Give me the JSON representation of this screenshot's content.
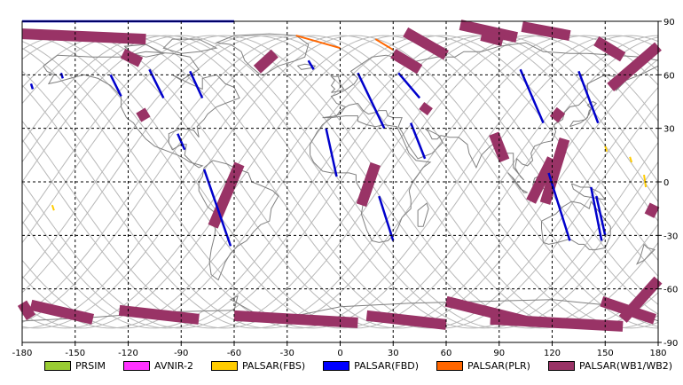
{
  "map": {
    "projection": "equirectangular",
    "lon_range": [
      -180,
      180
    ],
    "lat_range": [
      -90,
      90
    ],
    "grid_step": 30,
    "axis_ticks": {
      "lon": [
        -180,
        -150,
        -120,
        -90,
        -60,
        -30,
        0,
        30,
        60,
        90,
        120,
        150,
        180
      ],
      "lat": [
        90,
        60,
        30,
        0,
        -30,
        -60,
        -90
      ]
    }
  },
  "legend": [
    {
      "label": "PRSIM",
      "color": "#99cc33"
    },
    {
      "label": "AVNIR-2",
      "color": "#ff33ff"
    },
    {
      "label": "PALSAR(FBS)",
      "color": "#ffcc00"
    },
    {
      "label": "PALSAR(FBD)",
      "color": "#0000ff"
    },
    {
      "label": "PALSAR(PLR)",
      "color": "#ff6600"
    },
    {
      "label": "PALSAR(WB1/WB2)",
      "color": "#993366"
    }
  ],
  "colors": {
    "coast": "#808080",
    "orbit": "#b8b8b8",
    "grid": "#000000",
    "fbd": "#0000cc",
    "wb": "#993366",
    "plr": "#ff6600",
    "fbs": "#ffcc00"
  },
  "chart_data": {
    "type": "map",
    "wb_segments": [
      {
        "lon": [
          -180,
          -110
        ],
        "lat": [
          83,
          80
        ]
      },
      {
        "lon": [
          -123,
          -113
        ],
        "lat": [
          72,
          67
        ]
      },
      {
        "lon": [
          -113,
          -110
        ],
        "lat": [
          40,
          35
        ]
      },
      {
        "lon": [
          -57,
          -72
        ],
        "lat": [
          10,
          -25
        ]
      },
      {
        "lon": [
          -37,
          -47
        ],
        "lat": [
          72,
          63
        ]
      },
      {
        "lon": [
          30,
          45
        ],
        "lat": [
          72,
          63
        ]
      },
      {
        "lon": [
          37,
          60
        ],
        "lat": [
          84,
          71
        ]
      },
      {
        "lon": [
          68,
          100
        ],
        "lat": [
          88,
          81
        ]
      },
      {
        "lon": [
          80,
          92
        ],
        "lat": [
          82,
          79
        ]
      },
      {
        "lon": [
          103,
          130
        ],
        "lat": [
          87,
          82
        ]
      },
      {
        "lon": [
          145,
          160
        ],
        "lat": [
          79,
          70
        ]
      },
      {
        "lon": [
          180,
          153
        ],
        "lat": [
          76,
          53
        ]
      },
      {
        "lon": [
          50,
          47
        ],
        "lat": [
          43,
          39
        ]
      },
      {
        "lon": [
          125,
          121
        ],
        "lat": [
          40,
          35
        ]
      },
      {
        "lon": [
          87,
          93
        ],
        "lat": [
          27,
          12
        ]
      },
      {
        "lon": [
          127,
          116
        ],
        "lat": [
          24,
          -12
        ]
      },
      {
        "lon": [
          120,
          108
        ],
        "lat": [
          13,
          -11
        ]
      },
      {
        "lon": [
          20,
          12
        ],
        "lat": [
          10,
          -13
        ]
      },
      {
        "lon": [
          178,
          175
        ],
        "lat": [
          -13,
          -19
        ]
      },
      {
        "lon": [
          180,
          160
        ],
        "lat": [
          -55,
          -77
        ]
      },
      {
        "lon": [
          -175,
          -140
        ],
        "lat": [
          -69,
          -77
        ]
      },
      {
        "lon": [
          -180,
          -175
        ],
        "lat": [
          -68,
          -76
        ]
      },
      {
        "lon": [
          -125,
          -80
        ],
        "lat": [
          -72,
          -77
        ]
      },
      {
        "lon": [
          -60,
          10
        ],
        "lat": [
          -75,
          -79
        ]
      },
      {
        "lon": [
          15,
          60
        ],
        "lat": [
          -75,
          -80
        ]
      },
      {
        "lon": [
          60,
          105
        ],
        "lat": [
          -67,
          -78
        ]
      },
      {
        "lon": [
          85,
          160
        ],
        "lat": [
          -77,
          -81
        ]
      },
      {
        "lon": [
          148,
          178
        ],
        "lat": [
          -67,
          -77
        ]
      }
    ],
    "fbd_segments": [
      {
        "lon": [
          -180,
          -60
        ],
        "lat": [
          90,
          90
        ]
      },
      {
        "lon": [
          -175,
          -174
        ],
        "lat": [
          55,
          52
        ]
      },
      {
        "lon": [
          -158,
          -157
        ],
        "lat": [
          61,
          58
        ]
      },
      {
        "lon": [
          -130,
          -124
        ],
        "lat": [
          60,
          48
        ]
      },
      {
        "lon": [
          -108,
          -100
        ],
        "lat": [
          63,
          47
        ]
      },
      {
        "lon": [
          -85,
          -78
        ],
        "lat": [
          62,
          47
        ]
      },
      {
        "lon": [
          -92,
          -88
        ],
        "lat": [
          27,
          18
        ]
      },
      {
        "lon": [
          -77,
          -62
        ],
        "lat": [
          7,
          -36
        ]
      },
      {
        "lon": [
          -18,
          -15
        ],
        "lat": [
          68,
          63
        ]
      },
      {
        "lon": [
          10,
          25
        ],
        "lat": [
          61,
          30
        ]
      },
      {
        "lon": [
          -8,
          -2
        ],
        "lat": [
          30,
          3
        ]
      },
      {
        "lon": [
          33,
          45
        ],
        "lat": [
          61,
          47
        ]
      },
      {
        "lon": [
          40,
          48
        ],
        "lat": [
          33,
          13
        ]
      },
      {
        "lon": [
          22,
          30
        ],
        "lat": [
          -8,
          -33
        ]
      },
      {
        "lon": [
          102,
          115
        ],
        "lat": [
          63,
          33
        ]
      },
      {
        "lon": [
          118,
          130
        ],
        "lat": [
          5,
          -33
        ]
      },
      {
        "lon": [
          135,
          146
        ],
        "lat": [
          62,
          33
        ]
      },
      {
        "lon": [
          142,
          148
        ],
        "lat": [
          -3,
          -33
        ]
      },
      {
        "lon": [
          145,
          150
        ],
        "lat": [
          -8,
          -30
        ]
      }
    ],
    "plr_segments": [
      {
        "lon": [
          -25,
          0
        ],
        "lat": [
          82,
          75
        ]
      },
      {
        "lon": [
          20,
          30
        ],
        "lat": [
          80,
          74
        ]
      }
    ],
    "fbs_segments": [
      {
        "lon": [
          -163,
          -162
        ],
        "lat": [
          -13,
          -16
        ]
      },
      {
        "lon": [
          150,
          151
        ],
        "lat": [
          20,
          17
        ]
      },
      {
        "lon": [
          164,
          165
        ],
        "lat": [
          14,
          11
        ]
      },
      {
        "lon": [
          172,
          173
        ],
        "lat": [
          4,
          -3
        ]
      }
    ]
  }
}
